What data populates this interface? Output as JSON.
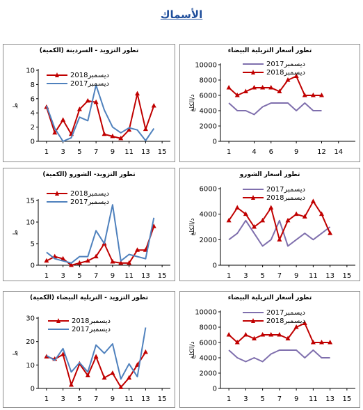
{
  "page": {
    "title": "الأسماك"
  },
  "colors": {
    "red": "#c00000",
    "blue": "#4f81bd",
    "purple": "#7f6fad"
  },
  "chart_data": [
    {
      "id": "qty-sardine",
      "type": "line",
      "title": "تطور التزويد - السردينة (الكمية)",
      "ylabel": "ط",
      "xlim": [
        0,
        16
      ],
      "ylim": [
        0,
        10
      ],
      "yticks": [
        0,
        2,
        4,
        6,
        8,
        10
      ],
      "xticks": [
        1,
        3,
        5,
        7,
        9,
        11,
        13,
        15
      ],
      "x": [
        1,
        2,
        3,
        4,
        5,
        6,
        7,
        8,
        9,
        10,
        11,
        12,
        13,
        14,
        15
      ],
      "legend_position": "top-center",
      "series": [
        {
          "name": "ديسمبر2018",
          "color": "#c00000",
          "marker": "triangle",
          "values": [
            4.8,
            1.2,
            3.0,
            1.0,
            4.5,
            5.7,
            5.5,
            1.0,
            0.7,
            0.4,
            1.6,
            6.7,
            1.7,
            5.0,
            null
          ]
        },
        {
          "name": "ديسمبر2017",
          "color": "#4f81bd",
          "marker": "none",
          "values": [
            5.0,
            1.8,
            0.0,
            0.5,
            3.4,
            2.9,
            7.9,
            4.4,
            2.0,
            1.2,
            1.9,
            1.6,
            0.1,
            1.8,
            null
          ]
        }
      ]
    },
    {
      "id": "price-white",
      "type": "line",
      "title": "تطور أسعار التريلية البيضاء",
      "ylabel": "د/الكلغ",
      "xlim": [
        0,
        16
      ],
      "ylim": [
        0,
        10000
      ],
      "yticks": [
        0,
        2000,
        4000,
        6000,
        8000,
        10000
      ],
      "xticks": [
        1,
        4,
        6,
        9,
        12,
        14
      ],
      "x": [
        1,
        2,
        3,
        4,
        5,
        6,
        7,
        8,
        9,
        10,
        11,
        12,
        13,
        14,
        15
      ],
      "legend_position": "top-left",
      "series": [
        {
          "name": "ديسمبر2017",
          "color": "#7f6fad",
          "marker": "none",
          "values": [
            5000,
            4000,
            4000,
            3500,
            4500,
            5000,
            5000,
            5000,
            4000,
            5000,
            4000,
            4000,
            null,
            null,
            null
          ]
        },
        {
          "name": "ديسمبر2018",
          "color": "#c00000",
          "marker": "triangle",
          "values": [
            7000,
            6000,
            6500,
            7000,
            7000,
            7000,
            6500,
            8000,
            8500,
            6000,
            6000,
            6000,
            null,
            null,
            null
          ]
        }
      ]
    },
    {
      "id": "qty-shoura",
      "type": "line",
      "title": "تطور التزويد- الشورو (الكمية)",
      "ylabel": "ط",
      "xlim": [
        0,
        16
      ],
      "ylim": [
        0,
        15
      ],
      "yticks": [
        0,
        5,
        10,
        15
      ],
      "xticks": [
        1,
        3,
        5,
        7,
        9,
        11,
        13,
        15
      ],
      "x": [
        1,
        2,
        3,
        4,
        5,
        6,
        7,
        8,
        9,
        10,
        11,
        12,
        13,
        14,
        15
      ],
      "legend_position": "top-center",
      "series": [
        {
          "name": "ديسمبر2018",
          "color": "#c00000",
          "marker": "triangle",
          "values": [
            1.0,
            2.0,
            1.5,
            0.0,
            0.5,
            1.0,
            2.0,
            5.0,
            0.8,
            0.5,
            0.5,
            3.5,
            3.5,
            9.0,
            null
          ]
        },
        {
          "name": "ديسمبر2017",
          "color": "#4f81bd",
          "marker": "none",
          "values": [
            3.0,
            1.5,
            1.0,
            0.5,
            2.0,
            2.0,
            8.0,
            5.0,
            14.0,
            1.0,
            2.5,
            2.0,
            1.5,
            11.0,
            null
          ]
        }
      ]
    },
    {
      "id": "price-shoura",
      "type": "line",
      "title": "تطور أسعار الشورو",
      "ylabel": "د/الكلغ",
      "xlim": [
        0,
        16
      ],
      "ylim": [
        0,
        6000
      ],
      "yticks": [
        0,
        2000,
        4000,
        6000
      ],
      "xticks": [
        1,
        3,
        5,
        7,
        9,
        11,
        13,
        15
      ],
      "x": [
        1,
        2,
        3,
        4,
        5,
        6,
        7,
        8,
        9,
        10,
        11,
        12,
        13,
        14,
        15
      ],
      "legend_position": "top-center",
      "series": [
        {
          "name": "ديسمبر2017",
          "color": "#7f6fad",
          "marker": "none",
          "values": [
            2000,
            2500,
            3500,
            2500,
            1500,
            2000,
            3500,
            1500,
            2000,
            2500,
            2000,
            2500,
            3000,
            null,
            null
          ]
        },
        {
          "name": "ديسمبر2018",
          "color": "#c00000",
          "marker": "triangle",
          "values": [
            3500,
            4500,
            4000,
            3000,
            3500,
            4500,
            2000,
            3500,
            4000,
            3800,
            5000,
            4000,
            2500,
            null,
            null
          ]
        }
      ]
    },
    {
      "id": "qty-white",
      "type": "line",
      "title": "تطور التزويد - التريلية البيضاء (الكمية)",
      "ylabel": "ط",
      "xlim": [
        0,
        16
      ],
      "ylim": [
        0,
        30
      ],
      "yticks": [
        0,
        10,
        20,
        30
      ],
      "xticks": [
        1,
        3,
        5,
        7,
        9,
        11,
        13,
        15
      ],
      "x": [
        1,
        2,
        3,
        4,
        5,
        6,
        7,
        8,
        9,
        10,
        11,
        12,
        13,
        14,
        15
      ],
      "legend_position": "top-center",
      "series": [
        {
          "name": "ديسمبر2018",
          "color": "#c00000",
          "marker": "triangle",
          "values": [
            13.5,
            12.5,
            14.5,
            1.5,
            10.5,
            5.5,
            13.5,
            4.5,
            6.5,
            0.5,
            4.5,
            10.0,
            15.5,
            null,
            null
          ]
        },
        {
          "name": "ديسمبر2017",
          "color": "#4f81bd",
          "marker": "none",
          "values": [
            14.0,
            12.0,
            17.0,
            7.0,
            11.0,
            7.0,
            18.5,
            15.0,
            19.0,
            4.0,
            10.5,
            5.0,
            26.0,
            null,
            null
          ]
        }
      ]
    },
    {
      "id": "price-white-2",
      "type": "line",
      "title": "تطور أسعار التريلية البيضاء",
      "ylabel": "د/الكلغ",
      "xlim": [
        0,
        16
      ],
      "ylim": [
        0,
        10000
      ],
      "yticks": [
        0,
        2000,
        4000,
        6000,
        8000,
        10000
      ],
      "xticks": [
        1,
        3,
        5,
        7,
        9,
        11,
        13,
        15
      ],
      "x": [
        1,
        2,
        3,
        4,
        5,
        6,
        7,
        8,
        9,
        10,
        11,
        12,
        13,
        14,
        15
      ],
      "legend_position": "top-left",
      "series": [
        {
          "name": "ديسمبر2017",
          "color": "#7f6fad",
          "marker": "none",
          "values": [
            5000,
            4000,
            3500,
            4000,
            3500,
            4500,
            5000,
            5000,
            5000,
            4000,
            5000,
            4000,
            4000,
            null,
            null
          ]
        },
        {
          "name": "ديسمبر2018",
          "color": "#c00000",
          "marker": "triangle",
          "values": [
            7000,
            6000,
            7000,
            6500,
            7000,
            7000,
            7000,
            6500,
            8000,
            8500,
            6000,
            6000,
            6000,
            null,
            null
          ]
        }
      ]
    }
  ]
}
